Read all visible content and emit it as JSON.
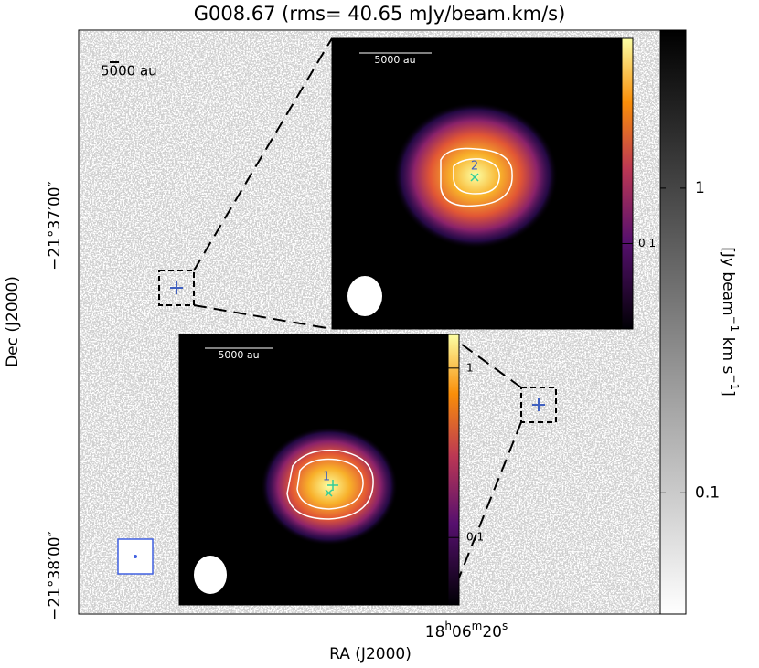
{
  "chart_data": {
    "type": "image",
    "title": "G008.67 (rms= 40.65 mJy/beam.km/s)",
    "xlabel": "RA (J2000)",
    "ylabel": "Dec (J2000)",
    "xtick_labels": [
      [
        "18",
        "h",
        "06",
        "m",
        "20",
        "s"
      ]
    ],
    "ytick_labels": [
      "−21°37′00″",
      "−21°38′00″"
    ],
    "scale_bar": "5000 au",
    "colorbar": {
      "label_parts": [
        "[Jy beam",
        "−1",
        " km s",
        "−1",
        "]"
      ],
      "log": true,
      "lim": [
        0.04,
        3.3
      ],
      "ticks": [
        0.1,
        1
      ]
    },
    "insets": [
      {
        "source": "2",
        "scale_bar": "5000 au",
        "colorbar": {
          "log": true,
          "lim": [
            0.03,
            1.8
          ],
          "ticks": [
            0.1
          ]
        }
      },
      {
        "source": "1",
        "scale_bar": "5000 au",
        "colorbar": {
          "log": true,
          "lim": [
            0.04,
            1.58
          ],
          "ticks": [
            0.1,
            1
          ]
        }
      }
    ]
  }
}
